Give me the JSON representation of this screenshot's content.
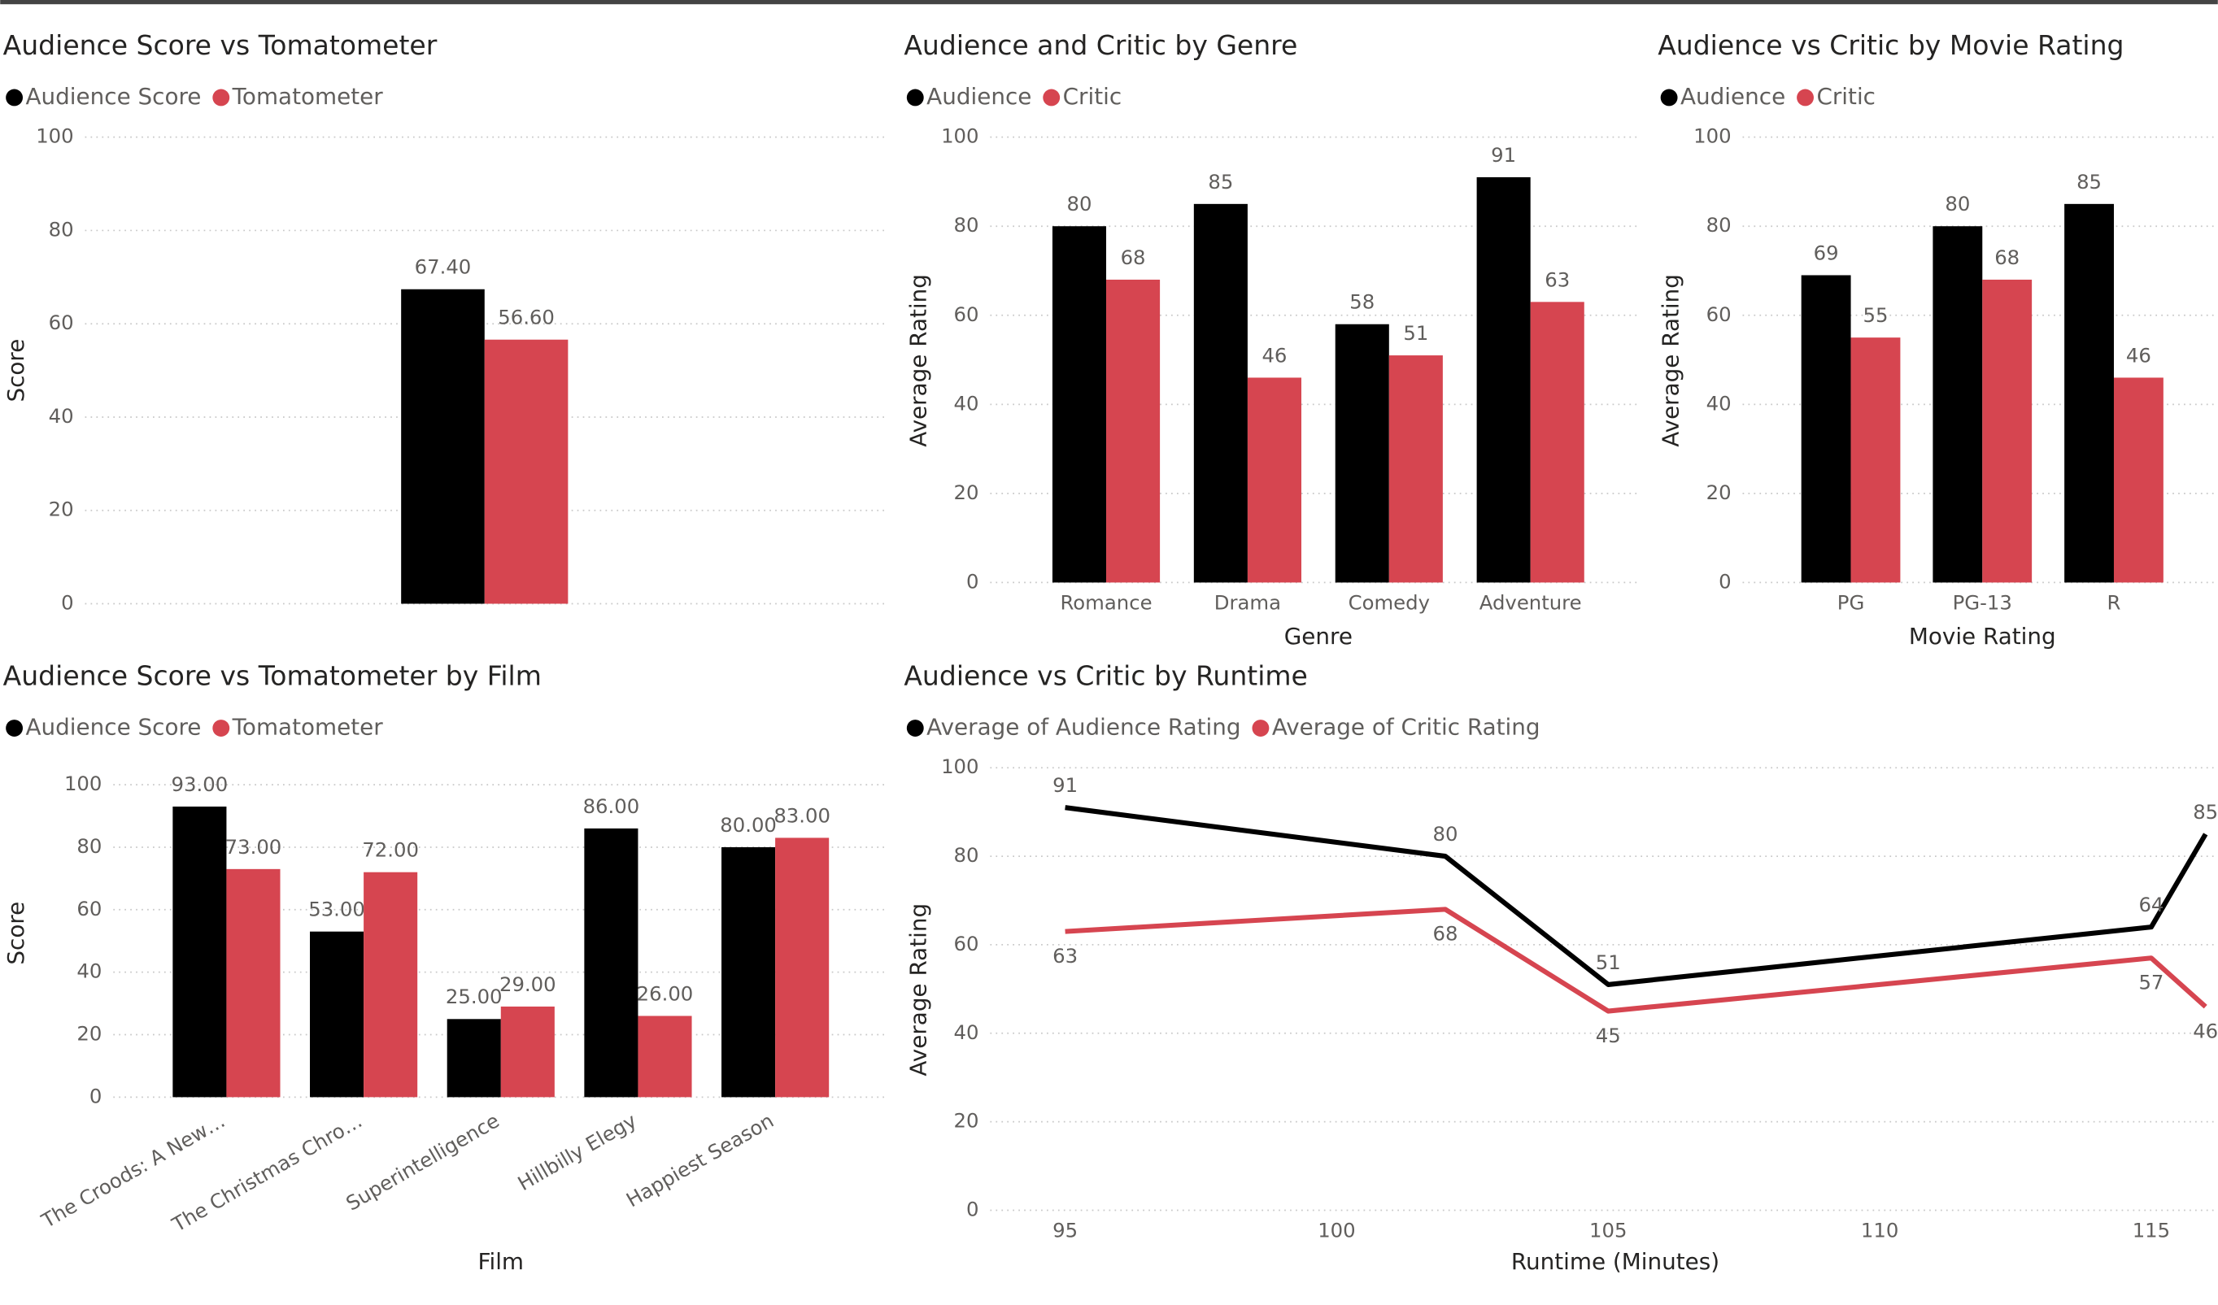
{
  "chart_data": [
    {
      "type": "bar",
      "title": "Audience Score vs Tomatometer",
      "ylabel": "Score",
      "categories": [
        null
      ],
      "series": [
        {
          "name": "Audience Score",
          "color": "#000000",
          "values": [
            67.4
          ],
          "value_labels": [
            "67.40"
          ]
        },
        {
          "name": "Tomatometer",
          "color": "#d64550",
          "values": [
            56.6
          ],
          "value_labels": [
            "56.60"
          ]
        }
      ],
      "ylim": [
        0,
        100
      ],
      "yticks": [
        0,
        20,
        40,
        60,
        80,
        100
      ],
      "grid": true,
      "legend": "top-left"
    },
    {
      "type": "bar",
      "title": "Audience and Critic by Genre",
      "xlabel": "Genre",
      "ylabel": "Average Rating",
      "categories": [
        "Romance",
        "Drama",
        "Comedy",
        "Adventure"
      ],
      "series": [
        {
          "name": "Audience",
          "color": "#000000",
          "values": [
            80,
            85,
            58,
            91
          ]
        },
        {
          "name": "Critic",
          "color": "#d64550",
          "values": [
            68,
            46,
            51,
            63
          ]
        }
      ],
      "ylim": [
        0,
        100
      ],
      "yticks": [
        0,
        20,
        40,
        60,
        80,
        100
      ],
      "grid": true,
      "legend": "top-left"
    },
    {
      "type": "bar",
      "title": "Audience vs Critic by Movie Rating",
      "xlabel": "Movie Rating",
      "ylabel": "Average Rating",
      "categories": [
        "PG",
        "PG-13",
        "R"
      ],
      "series": [
        {
          "name": "Audience",
          "color": "#000000",
          "values": [
            69,
            80,
            85
          ]
        },
        {
          "name": "Critic",
          "color": "#d64550",
          "values": [
            55,
            68,
            46
          ]
        }
      ],
      "ylim": [
        0,
        100
      ],
      "yticks": [
        0,
        20,
        40,
        60,
        80,
        100
      ],
      "grid": true,
      "legend": "top-left"
    },
    {
      "type": "bar",
      "title": "Audience Score vs Tomatometer by Film",
      "xlabel": "Film",
      "ylabel": "Score",
      "categories": [
        "The Croods: A New…",
        "The Christmas Chro…",
        "Superintelligence",
        "Hillbilly Elegy",
        "Happiest Season"
      ],
      "series": [
        {
          "name": "Audience Score",
          "color": "#000000",
          "values": [
            93,
            53,
            25,
            86,
            80
          ],
          "value_labels": [
            "93.00",
            "53.00",
            "25.00",
            "86.00",
            "80.00"
          ]
        },
        {
          "name": "Tomatometer",
          "color": "#d64550",
          "values": [
            73,
            72,
            29,
            26,
            83
          ],
          "value_labels": [
            "73.00",
            "72.00",
            "29.00",
            "26.00",
            "83.00"
          ]
        }
      ],
      "ylim": [
        0,
        100
      ],
      "yticks": [
        0,
        20,
        40,
        60,
        80,
        100
      ],
      "grid": true,
      "legend": "top-left"
    },
    {
      "type": "line",
      "title": "Audience vs Critic by Runtime",
      "xlabel": "Runtime (Minutes)",
      "ylabel": "Average Rating",
      "x": [
        95,
        102,
        105,
        115,
        116
      ],
      "series": [
        {
          "name": "Average of Audience Rating",
          "color": "#000000",
          "values": [
            91,
            80,
            51,
            64,
            85
          ]
        },
        {
          "name": "Average of Critic Rating",
          "color": "#d64550",
          "values": [
            63,
            68,
            45,
            57,
            46
          ]
        }
      ],
      "xlim": [
        93.5,
        116.2
      ],
      "xticks": [
        95,
        100,
        105,
        110,
        115
      ],
      "ylim": [
        0,
        100
      ],
      "yticks": [
        0,
        20,
        40,
        60,
        80,
        100
      ],
      "grid": true,
      "legend": "top-left"
    }
  ]
}
